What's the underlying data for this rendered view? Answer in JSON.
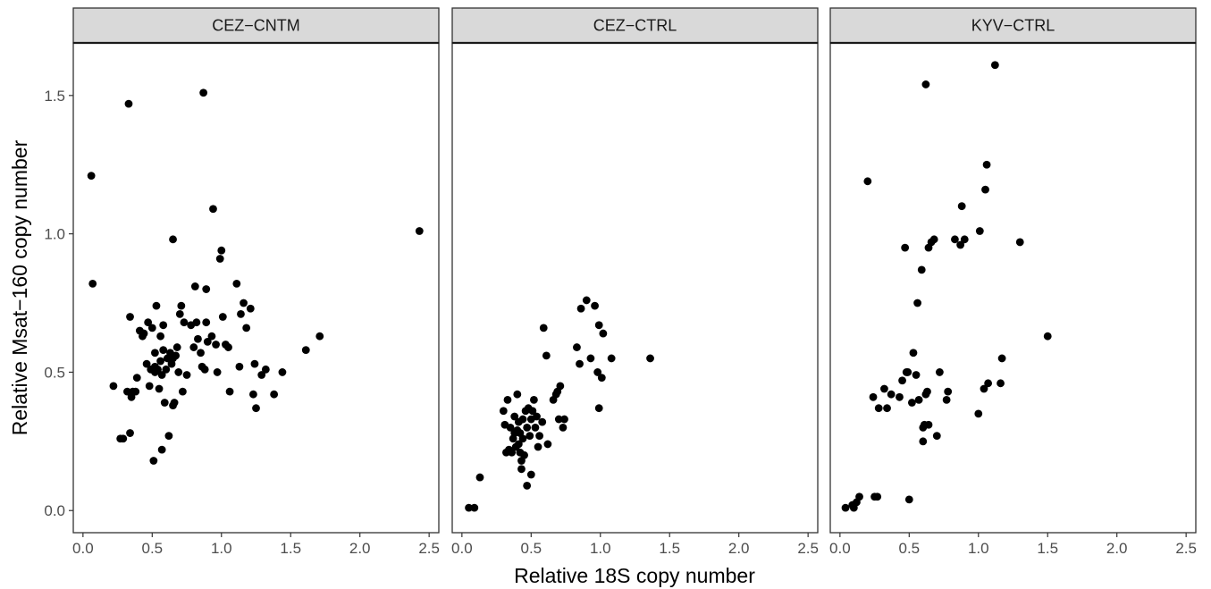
{
  "chart_data": {
    "type": "scatter",
    "xlabel": "Relative 18S copy number",
    "ylabel": "Relative Msat−160 copy number",
    "xlim": [
      -0.07,
      2.57
    ],
    "ylim": [
      -0.08,
      1.69
    ],
    "x_ticks": [
      0.0,
      0.5,
      1.0,
      1.5,
      2.0,
      2.5
    ],
    "x_tick_labels": [
      "0.0",
      "0.5",
      "1.0",
      "1.5",
      "2.0",
      "2.5"
    ],
    "y_ticks": [
      0.0,
      0.5,
      1.0,
      1.5
    ],
    "y_tick_labels": [
      "0.0",
      "0.5",
      "1.0",
      "1.5"
    ],
    "grid": false,
    "colors": {
      "point": "#000000",
      "strip": "#d9d9d9",
      "panel_border": "#333333"
    },
    "panels": [
      {
        "label": "CEZ−CNTM",
        "points": [
          [
            0.06,
            1.21
          ],
          [
            0.07,
            0.82
          ],
          [
            0.22,
            0.45
          ],
          [
            0.27,
            0.26
          ],
          [
            0.29,
            0.26
          ],
          [
            0.32,
            0.43
          ],
          [
            0.33,
            1.47
          ],
          [
            0.34,
            0.28
          ],
          [
            0.34,
            0.7
          ],
          [
            0.35,
            0.41
          ],
          [
            0.36,
            0.43
          ],
          [
            0.38,
            0.43
          ],
          [
            0.39,
            0.48
          ],
          [
            0.41,
            0.65
          ],
          [
            0.43,
            0.63
          ],
          [
            0.44,
            0.64
          ],
          [
            0.46,
            0.53
          ],
          [
            0.47,
            0.68
          ],
          [
            0.48,
            0.45
          ],
          [
            0.49,
            0.51
          ],
          [
            0.5,
            0.66
          ],
          [
            0.51,
            0.18
          ],
          [
            0.52,
            0.5
          ],
          [
            0.52,
            0.52
          ],
          [
            0.52,
            0.57
          ],
          [
            0.53,
            0.74
          ],
          [
            0.54,
            0.51
          ],
          [
            0.55,
            0.44
          ],
          [
            0.56,
            0.54
          ],
          [
            0.56,
            0.63
          ],
          [
            0.57,
            0.22
          ],
          [
            0.57,
            0.49
          ],
          [
            0.58,
            0.58
          ],
          [
            0.58,
            0.67
          ],
          [
            0.59,
            0.39
          ],
          [
            0.6,
            0.51
          ],
          [
            0.61,
            0.55
          ],
          [
            0.62,
            0.27
          ],
          [
            0.63,
            0.57
          ],
          [
            0.64,
            0.53
          ],
          [
            0.65,
            0.38
          ],
          [
            0.65,
            0.55
          ],
          [
            0.65,
            0.98
          ],
          [
            0.66,
            0.39
          ],
          [
            0.67,
            0.56
          ],
          [
            0.68,
            0.59
          ],
          [
            0.69,
            0.5
          ],
          [
            0.7,
            0.71
          ],
          [
            0.71,
            0.74
          ],
          [
            0.72,
            0.43
          ],
          [
            0.73,
            0.68
          ],
          [
            0.75,
            0.49
          ],
          [
            0.78,
            0.67
          ],
          [
            0.8,
            0.59
          ],
          [
            0.81,
            0.81
          ],
          [
            0.82,
            0.68
          ],
          [
            0.83,
            0.62
          ],
          [
            0.85,
            0.57
          ],
          [
            0.86,
            0.52
          ],
          [
            0.87,
            1.51
          ],
          [
            0.88,
            0.51
          ],
          [
            0.89,
            0.68
          ],
          [
            0.89,
            0.8
          ],
          [
            0.9,
            0.61
          ],
          [
            0.93,
            0.63
          ],
          [
            0.94,
            1.09
          ],
          [
            0.96,
            0.6
          ],
          [
            0.97,
            0.5
          ],
          [
            0.99,
            0.91
          ],
          [
            1.0,
            0.94
          ],
          [
            1.01,
            0.7
          ],
          [
            1.03,
            0.6
          ],
          [
            1.05,
            0.59
          ],
          [
            1.06,
            0.43
          ],
          [
            1.11,
            0.82
          ],
          [
            1.13,
            0.52
          ],
          [
            1.14,
            0.71
          ],
          [
            1.16,
            0.75
          ],
          [
            1.18,
            0.66
          ],
          [
            1.21,
            0.73
          ],
          [
            1.23,
            0.42
          ],
          [
            1.24,
            0.53
          ],
          [
            1.25,
            0.37
          ],
          [
            1.29,
            0.49
          ],
          [
            1.32,
            0.51
          ],
          [
            1.38,
            0.42
          ],
          [
            1.44,
            0.5
          ],
          [
            1.61,
            0.58
          ],
          [
            1.71,
            0.63
          ],
          [
            2.43,
            1.01
          ]
        ]
      },
      {
        "label": "CEZ−CTRL",
        "points": [
          [
            0.05,
            0.01
          ],
          [
            0.09,
            0.01
          ],
          [
            0.13,
            0.12
          ],
          [
            0.3,
            0.36
          ],
          [
            0.31,
            0.31
          ],
          [
            0.32,
            0.21
          ],
          [
            0.33,
            0.4
          ],
          [
            0.34,
            0.22
          ],
          [
            0.35,
            0.3
          ],
          [
            0.36,
            0.21
          ],
          [
            0.37,
            0.26
          ],
          [
            0.38,
            0.28
          ],
          [
            0.38,
            0.34
          ],
          [
            0.39,
            0.23
          ],
          [
            0.4,
            0.29
          ],
          [
            0.4,
            0.42
          ],
          [
            0.41,
            0.24
          ],
          [
            0.41,
            0.32
          ],
          [
            0.42,
            0.21
          ],
          [
            0.42,
            0.28
          ],
          [
            0.43,
            0.15
          ],
          [
            0.43,
            0.18
          ],
          [
            0.44,
            0.26
          ],
          [
            0.44,
            0.33
          ],
          [
            0.45,
            0.2
          ],
          [
            0.46,
            0.36
          ],
          [
            0.47,
            0.09
          ],
          [
            0.47,
            0.3
          ],
          [
            0.48,
            0.37
          ],
          [
            0.49,
            0.27
          ],
          [
            0.5,
            0.13
          ],
          [
            0.5,
            0.33
          ],
          [
            0.51,
            0.36
          ],
          [
            0.52,
            0.4
          ],
          [
            0.53,
            0.3
          ],
          [
            0.54,
            0.34
          ],
          [
            0.55,
            0.23
          ],
          [
            0.56,
            0.27
          ],
          [
            0.58,
            0.32
          ],
          [
            0.59,
            0.66
          ],
          [
            0.61,
            0.56
          ],
          [
            0.62,
            0.24
          ],
          [
            0.66,
            0.4
          ],
          [
            0.68,
            0.42
          ],
          [
            0.69,
            0.43
          ],
          [
            0.7,
            0.33
          ],
          [
            0.71,
            0.45
          ],
          [
            0.73,
            0.3
          ],
          [
            0.74,
            0.33
          ],
          [
            0.83,
            0.59
          ],
          [
            0.85,
            0.53
          ],
          [
            0.86,
            0.73
          ],
          [
            0.9,
            0.76
          ],
          [
            0.93,
            0.55
          ],
          [
            0.96,
            0.74
          ],
          [
            0.98,
            0.5
          ],
          [
            0.99,
            0.37
          ],
          [
            0.99,
            0.67
          ],
          [
            1.01,
            0.48
          ],
          [
            1.02,
            0.64
          ],
          [
            1.08,
            0.55
          ],
          [
            1.36,
            0.55
          ]
        ]
      },
      {
        "label": "KYV−CTRL",
        "points": [
          [
            0.04,
            0.01
          ],
          [
            0.09,
            0.02
          ],
          [
            0.1,
            0.01
          ],
          [
            0.12,
            0.03
          ],
          [
            0.14,
            0.05
          ],
          [
            0.2,
            1.19
          ],
          [
            0.24,
            0.41
          ],
          [
            0.25,
            0.05
          ],
          [
            0.27,
            0.05
          ],
          [
            0.28,
            0.37
          ],
          [
            0.32,
            0.44
          ],
          [
            0.34,
            0.37
          ],
          [
            0.37,
            0.42
          ],
          [
            0.43,
            0.41
          ],
          [
            0.45,
            0.47
          ],
          [
            0.47,
            0.95
          ],
          [
            0.48,
            0.5
          ],
          [
            0.49,
            0.5
          ],
          [
            0.5,
            0.04
          ],
          [
            0.52,
            0.39
          ],
          [
            0.53,
            0.57
          ],
          [
            0.55,
            0.49
          ],
          [
            0.56,
            0.75
          ],
          [
            0.57,
            0.4
          ],
          [
            0.59,
            0.87
          ],
          [
            0.6,
            0.25
          ],
          [
            0.6,
            0.3
          ],
          [
            0.61,
            0.31
          ],
          [
            0.62,
            0.42
          ],
          [
            0.62,
            1.54
          ],
          [
            0.63,
            0.43
          ],
          [
            0.64,
            0.31
          ],
          [
            0.64,
            0.95
          ],
          [
            0.66,
            0.97
          ],
          [
            0.68,
            0.98
          ],
          [
            0.7,
            0.27
          ],
          [
            0.72,
            0.5
          ],
          [
            0.77,
            0.4
          ],
          [
            0.78,
            0.43
          ],
          [
            0.83,
            0.98
          ],
          [
            0.87,
            0.96
          ],
          [
            0.88,
            1.1
          ],
          [
            0.9,
            0.98
          ],
          [
            1.0,
            0.35
          ],
          [
            1.01,
            1.01
          ],
          [
            1.04,
            0.44
          ],
          [
            1.05,
            1.16
          ],
          [
            1.06,
            1.25
          ],
          [
            1.07,
            0.46
          ],
          [
            1.12,
            1.61
          ],
          [
            1.16,
            0.46
          ],
          [
            1.17,
            0.55
          ],
          [
            1.3,
            0.97
          ],
          [
            1.5,
            0.63
          ]
        ]
      }
    ]
  }
}
